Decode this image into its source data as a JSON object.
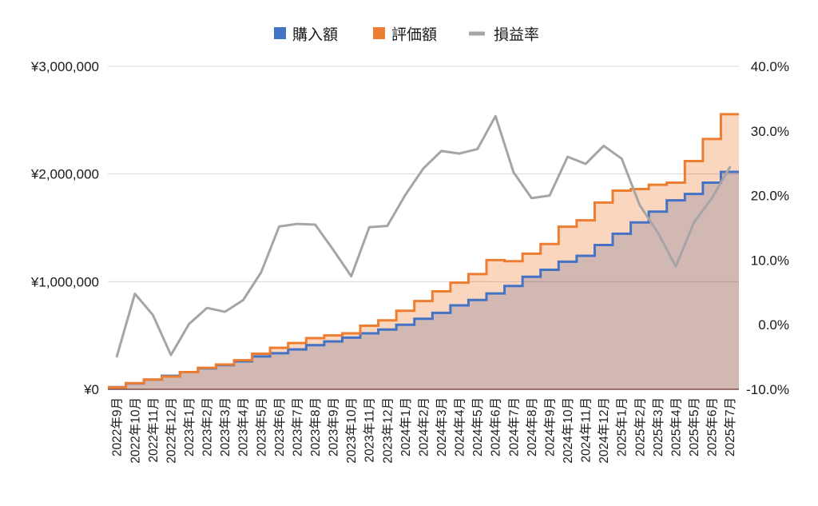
{
  "chart_data": {
    "type": "area",
    "legend": "top",
    "grid": true,
    "categories": [
      "2022年9月",
      "2022年10月",
      "2022年11月",
      "2022年12月",
      "2023年1月",
      "2023年2月",
      "2023年3月",
      "2023年4月",
      "2023年5月",
      "2023年6月",
      "2023年7月",
      "2023年8月",
      "2023年9月",
      "2023年10月",
      "2023年11月",
      "2023年12月",
      "2024年1月",
      "2024年2月",
      "2024年3月",
      "2024年4月",
      "2024年5月",
      "2024年6月",
      "2024年7月",
      "2024年8月",
      "2024年9月",
      "2024年10月",
      "2024年11月",
      "2024年12月",
      "2025年1月",
      "2025年2月",
      "2025年3月",
      "2025年4月",
      "2025年5月",
      "2025年6月",
      "2025年7月"
    ],
    "series": [
      {
        "name": "購入額",
        "type": "step-area",
        "y_axis": "left",
        "color": "#4472c4",
        "fill": "#d1b8b3",
        "values": [
          20000,
          55000,
          90000,
          125000,
          160000,
          195000,
          225000,
          260000,
          305000,
          335000,
          370000,
          410000,
          445000,
          480000,
          520000,
          555000,
          600000,
          655000,
          710000,
          780000,
          830000,
          890000,
          960000,
          1045000,
          1110000,
          1185000,
          1240000,
          1340000,
          1445000,
          1550000,
          1650000,
          1755000,
          1815000,
          1920000,
          2020000
        ]
      },
      {
        "name": "評価額",
        "type": "step-area",
        "y_axis": "left",
        "color": "#ed7d31",
        "fill": "#fbd6bf",
        "values": [
          19000,
          58000,
          91000,
          119000,
          160000,
          200000,
          230000,
          270000,
          330000,
          385000,
          430000,
          475000,
          500000,
          520000,
          590000,
          640000,
          730000,
          820000,
          910000,
          990000,
          1070000,
          1200000,
          1190000,
          1260000,
          1350000,
          1510000,
          1570000,
          1735000,
          1845000,
          1860000,
          1900000,
          1920000,
          2120000,
          2325000,
          2555000
        ]
      },
      {
        "name": "損益率",
        "type": "line",
        "y_axis": "right",
        "color": "#a5a5a5",
        "values": [
          -4.9,
          4.8,
          1.5,
          -4.7,
          0.1,
          2.6,
          2.0,
          3.8,
          8.1,
          15.2,
          15.6,
          15.5,
          11.6,
          7.5,
          15.1,
          15.3,
          20.1,
          24.2,
          26.9,
          26.5,
          27.2,
          32.3,
          23.6,
          19.6,
          20.0,
          26.0,
          24.9,
          27.7,
          25.7,
          18.5,
          14.3,
          9.0,
          15.8,
          19.6,
          24.4
        ]
      }
    ],
    "y_left": {
      "min": 0,
      "max": 3000000,
      "ticks": [
        0,
        1000000,
        2000000,
        3000000
      ],
      "tick_labels": [
        "¥0",
        "¥1,000,000",
        "¥2,000,000",
        "¥3,000,000"
      ]
    },
    "y_right": {
      "min": -10,
      "max": 40,
      "ticks": [
        -10,
        0,
        10,
        20,
        30,
        40
      ],
      "tick_labels": [
        "-10.0%",
        "0.0%",
        "10.0%",
        "20.0%",
        "30.0%",
        "40.0%"
      ]
    },
    "gridline_color": "#d9d9d9",
    "axis_line_color": "#7b4a46"
  }
}
